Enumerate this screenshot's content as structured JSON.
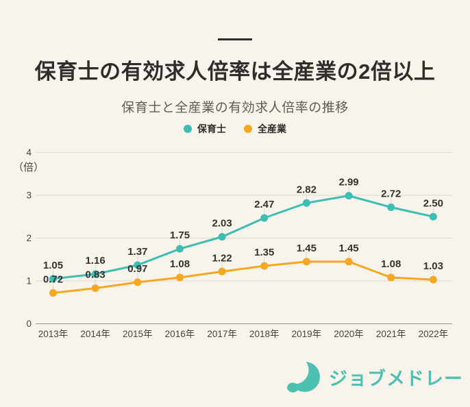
{
  "header": {
    "title": "保育士の有効求人倍率は全産業の2倍以上",
    "subtitle": "保育士と全産業の有効求人倍率の推移"
  },
  "chart_data": {
    "type": "line",
    "title": "保育士と全産業の有効求人倍率の推移",
    "unit_label": "（倍）",
    "categories": [
      "2013年",
      "2014年",
      "2015年",
      "2016年",
      "2017年",
      "2018年",
      "2019年",
      "2020年",
      "2021年",
      "2022年"
    ],
    "series": [
      {
        "name": "保育士",
        "color": "#3EBDB3",
        "values": [
          1.05,
          1.16,
          1.37,
          1.75,
          2.03,
          2.47,
          2.82,
          2.99,
          2.72,
          2.5
        ]
      },
      {
        "name": "全産業",
        "color": "#F6A71F",
        "values": [
          0.72,
          0.83,
          0.97,
          1.08,
          1.22,
          1.35,
          1.45,
          1.45,
          1.08,
          1.03
        ]
      }
    ],
    "ylim": [
      0,
      4
    ],
    "yticks": [
      0,
      1,
      2,
      3,
      4
    ],
    "grid": true,
    "legend_position": "top",
    "value_labels": true
  },
  "footer": {
    "brand": "ジョブメドレー"
  },
  "colors": {
    "background": "#F8F4EC",
    "title_text": "#2E2D2B",
    "subtitle_text": "#5E5C55",
    "grid_line": "#DDD9CF",
    "axis_line": "#9B978D",
    "tick_text": "#45433E",
    "value_label_text": "#35332F",
    "connector_line": "#DCD8CE",
    "brand": "#4DC0B2"
  }
}
